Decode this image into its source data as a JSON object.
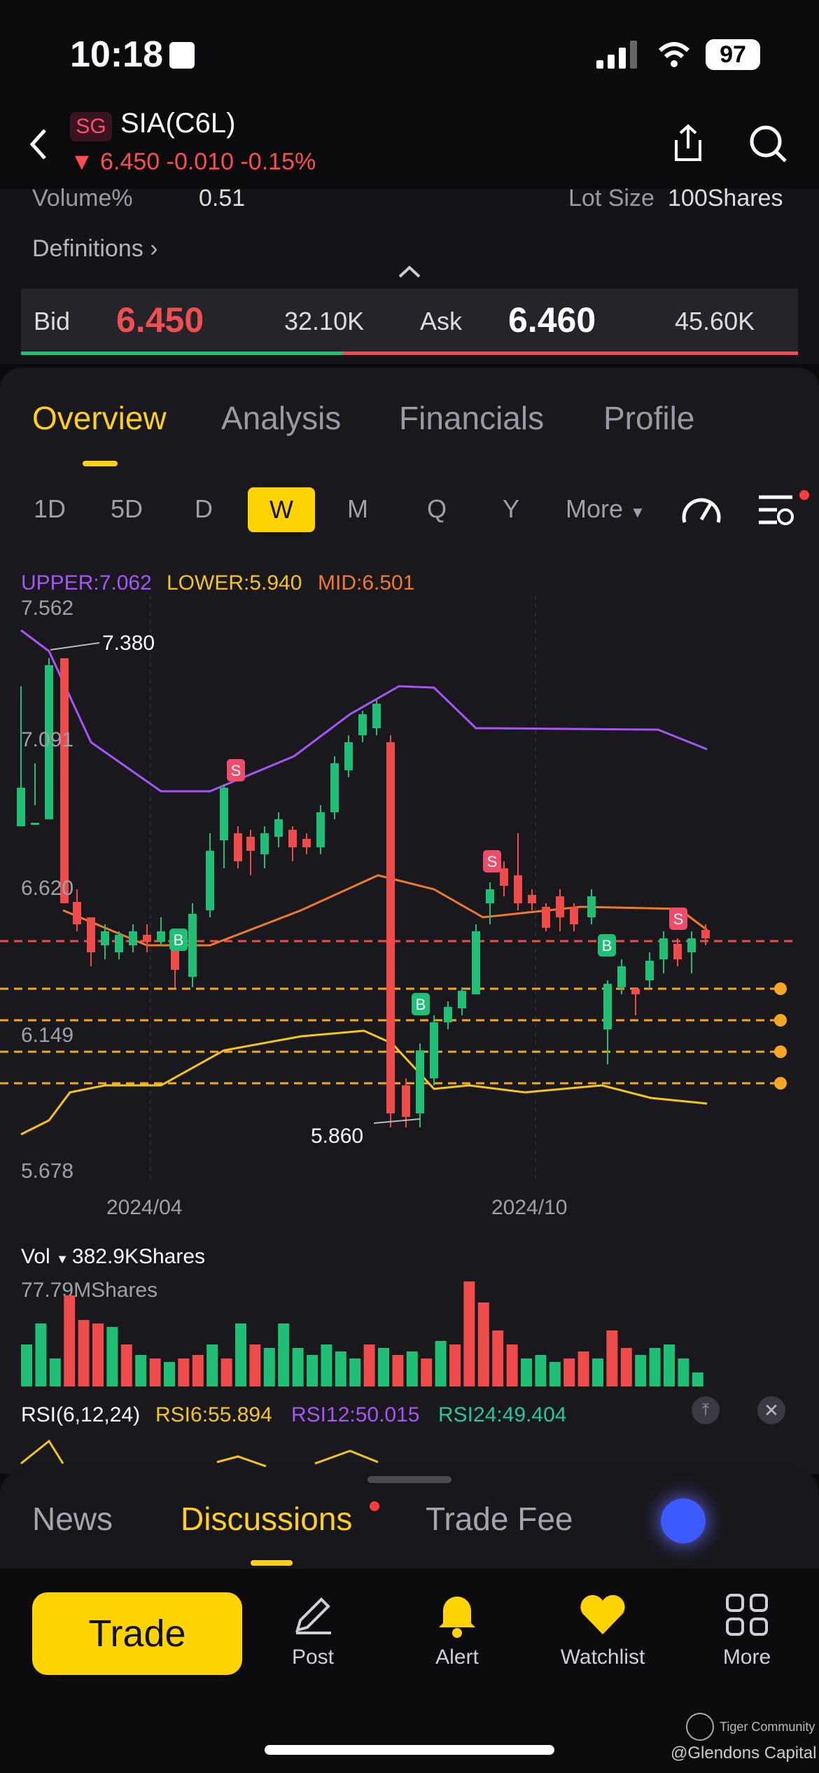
{
  "status_bar": {
    "time": "10:18",
    "battery": "97"
  },
  "header": {
    "market_badge": "SG",
    "title": "SIA(C6L)",
    "price_line": "▼ 6.450 -0.010 -0.15%"
  },
  "stats": {
    "volume_pct_label": "Volume%",
    "volume_pct_value": "0.51",
    "lot_size_label": "Lot Size",
    "lot_size_value": "100Shares",
    "definitions_label": "Definitions"
  },
  "quote": {
    "bid_label": "Bid",
    "bid_price": "6.450",
    "bid_size": "32.10K",
    "ask_label": "Ask",
    "ask_price": "6.460",
    "ask_size": "45.60K"
  },
  "tabs": [
    {
      "label": "Overview"
    },
    {
      "label": "Analysis"
    },
    {
      "label": "Financials"
    },
    {
      "label": "Profile"
    }
  ],
  "periods": [
    "1D",
    "5D",
    "D",
    "W",
    "M",
    "Q",
    "Y",
    "More"
  ],
  "indicator": {
    "upper": "UPPER:7.062",
    "lower": "LOWER:5.940",
    "mid": "MID:6.501"
  },
  "chart_data": {
    "type": "candlestick",
    "y_ticks": [
      "7.562",
      "7.091",
      "6.620",
      "6.149",
      "5.678"
    ],
    "x_ticks": [
      "2024/04",
      "2024/10"
    ],
    "annotations": [
      "7.380",
      "5.860"
    ],
    "ylim": [
      5.678,
      7.562
    ],
    "grid": true
  },
  "volume": {
    "label": "Vol",
    "value": "382.9KShares",
    "max": "77.79MShares"
  },
  "rsi": {
    "label": "RSI(6,12,24)",
    "rsi6": "RSI6:55.894",
    "rsi12": "RSI12:50.015",
    "rsi24": "RSI24:49.404"
  },
  "bottom_tabs": [
    {
      "label": "News"
    },
    {
      "label": "Discussions"
    },
    {
      "label": "Trade Fee"
    }
  ],
  "nav": {
    "trade": "Trade",
    "post": "Post",
    "alert": "Alert",
    "watchlist": "Watchlist",
    "more": "More"
  },
  "watermark": {
    "community": "Tiger Community",
    "handle": "@Glendons Capital"
  },
  "colors": {
    "accent": "#ffcf1a",
    "up": "#1fbf75",
    "down": "#ef4b4b",
    "upper_band": "#a855f7",
    "lower_band": "#f5c518",
    "mid_band": "#f07a2a"
  }
}
